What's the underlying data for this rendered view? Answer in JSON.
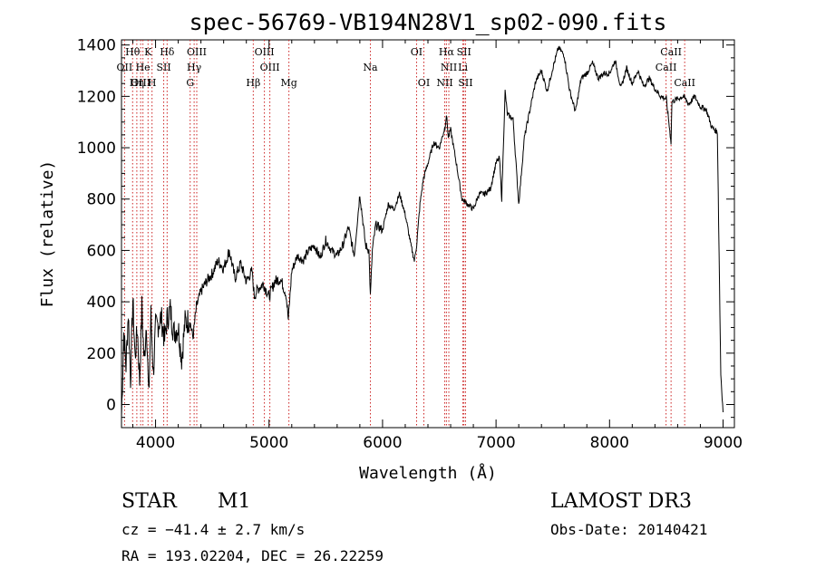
{
  "chart_data": {
    "type": "line",
    "title": "spec-56769-VB194N28V1_sp02-090.fits",
    "xlabel": "Wavelength (Å)",
    "ylabel": "Flux (relative)",
    "xlim": [
      3700,
      9100
    ],
    "ylim": [
      -90,
      1420
    ],
    "grid": false,
    "x_ticks": [
      "4000",
      "5000",
      "6000",
      "7000",
      "8000",
      "9000"
    ],
    "y_ticks": [
      "0",
      "200",
      "400",
      "600",
      "800",
      "1000",
      "1200",
      "1400"
    ],
    "spectrum": {
      "x": [
        3700,
        3720,
        3740,
        3760,
        3780,
        3800,
        3820,
        3840,
        3860,
        3880,
        3900,
        3920,
        3940,
        3960,
        3980,
        4000,
        4020,
        4050,
        4080,
        4100,
        4130,
        4160,
        4200,
        4230,
        4260,
        4300,
        4330,
        4360,
        4400,
        4450,
        4500,
        4550,
        4600,
        4650,
        4700,
        4750,
        4800,
        4850,
        4870,
        4900,
        4950,
        5000,
        5050,
        5100,
        5150,
        5170,
        5200,
        5250,
        5300,
        5350,
        5400,
        5450,
        5500,
        5550,
        5600,
        5650,
        5700,
        5750,
        5800,
        5850,
        5880,
        5893,
        5910,
        5940,
        6000,
        6050,
        6100,
        6150,
        6200,
        6250,
        6280,
        6300,
        6330,
        6360,
        6400,
        6450,
        6500,
        6550,
        6563,
        6580,
        6600,
        6650,
        6700,
        6750,
        6800,
        6850,
        6900,
        6950,
        7000,
        7030,
        7050,
        7080,
        7100,
        7150,
        7200,
        7250,
        7300,
        7350,
        7400,
        7450,
        7500,
        7550,
        7600,
        7650,
        7700,
        7750,
        7800,
        7850,
        7900,
        7950,
        8000,
        8050,
        8100,
        8150,
        8200,
        8250,
        8300,
        8350,
        8400,
        8450,
        8500,
        8542,
        8550,
        8600,
        8650,
        8700,
        8750,
        8800,
        8850,
        8900,
        8950,
        8980,
        9000
      ],
      "y": [
        -50,
        280,
        150,
        360,
        100,
        410,
        180,
        300,
        90,
        380,
        160,
        330,
        20,
        350,
        120,
        300,
        310,
        340,
        250,
        330,
        370,
        280,
        300,
        180,
        320,
        330,
        260,
        380,
        440,
        480,
        510,
        560,
        530,
        600,
        490,
        550,
        480,
        520,
        420,
        450,
        470,
        420,
        480,
        490,
        430,
        330,
        520,
        580,
        560,
        600,
        620,
        570,
        640,
        600,
        580,
        620,
        690,
        580,
        820,
        620,
        600,
        420,
        600,
        700,
        680,
        780,
        760,
        820,
        740,
        620,
        560,
        620,
        780,
        880,
        940,
        1020,
        1000,
        1080,
        1130,
        1040,
        1070,
        940,
        800,
        780,
        760,
        820,
        820,
        840,
        940,
        960,
        800,
        1220,
        1130,
        1110,
        780,
        1040,
        1150,
        1260,
        1300,
        1220,
        1310,
        1390,
        1360,
        1220,
        1140,
        1270,
        1290,
        1330,
        1270,
        1290,
        1290,
        1340,
        1230,
        1310,
        1250,
        1300,
        1240,
        1270,
        1230,
        1200,
        1190,
        1020,
        1180,
        1190,
        1200,
        1170,
        1200,
        1160,
        1150,
        1080,
        1060,
        120,
        -30
      ]
    },
    "lines": [
      {
        "label": "Hθ",
        "wave": 3798,
        "row": 0
      },
      {
        "label": "K",
        "wave": 3934,
        "row": 0
      },
      {
        "label": "Hδ",
        "wave": 4102,
        "row": 0
      },
      {
        "label": "OIII",
        "wave": 4363,
        "row": 0
      },
      {
        "label": "OIII",
        "wave": 4959,
        "row": 0
      },
      {
        "label": "OI",
        "wave": 6300,
        "row": 0
      },
      {
        "label": "Hα",
        "wave": 6563,
        "row": 0
      },
      {
        "label": "SII",
        "wave": 6717,
        "row": 0
      },
      {
        "label": "CaII",
        "wave": 8542,
        "row": 0
      },
      {
        "label": "OII",
        "wave": 3727,
        "row": 1
      },
      {
        "label": "He",
        "wave": 3889,
        "row": 1
      },
      {
        "label": "SII",
        "wave": 4072,
        "row": 1
      },
      {
        "label": "Hγ",
        "wave": 4340,
        "row": 1
      },
      {
        "label": "OIII",
        "wave": 5007,
        "row": 1
      },
      {
        "label": "Na",
        "wave": 5893,
        "row": 1
      },
      {
        "label": "NII",
        "wave": 6584,
        "row": 1
      },
      {
        "label": "Li",
        "wave": 6708,
        "row": 1
      },
      {
        "label": "CaII",
        "wave": 8498,
        "row": 1
      },
      {
        "label": "OIII",
        "wave": 3869,
        "row": 2
      },
      {
        "label": "Hη",
        "wave": 3835,
        "row": 2
      },
      {
        "label": "H",
        "wave": 3969,
        "row": 2
      },
      {
        "label": "G",
        "wave": 4305,
        "row": 2
      },
      {
        "label": "Hβ",
        "wave": 4861,
        "row": 2
      },
      {
        "label": "Mg",
        "wave": 5175,
        "row": 2
      },
      {
        "label": "OI",
        "wave": 6364,
        "row": 2
      },
      {
        "label": "NII",
        "wave": 6548,
        "row": 2
      },
      {
        "label": "SII",
        "wave": 6731,
        "row": 2
      },
      {
        "label": "CaII",
        "wave": 8662,
        "row": 2
      }
    ]
  },
  "info": {
    "object_class": "STAR",
    "subclass": "M1",
    "survey": "LAMOST DR3",
    "cz": "cz = −41.4 ± 2.7 km/s",
    "obs_date": "Obs-Date: 20140421",
    "coords": "RA = 193.02204, DEC =  26.22259"
  },
  "colors": {
    "line_marker": "#cc2222",
    "spectrum": "#000000"
  }
}
